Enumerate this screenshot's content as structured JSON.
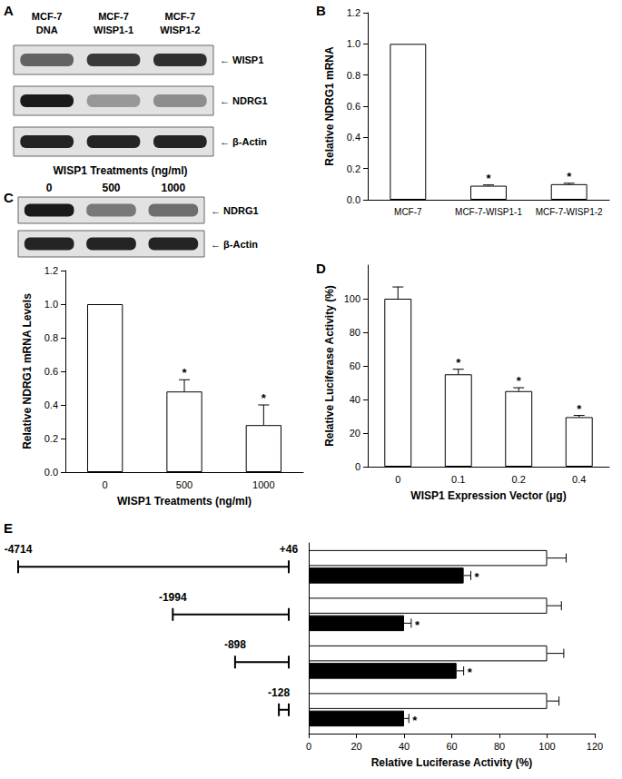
{
  "blots": [
    {
      "panel": "A",
      "lanes": [
        [
          "MCF-7",
          "DNA"
        ],
        [
          "MCF-7",
          "WISP1-1"
        ],
        [
          "MCF-7",
          "WISP1-2"
        ]
      ],
      "rows": [
        {
          "label": "← WISP1",
          "intensity": [
            0.6,
            0.8,
            0.85
          ]
        },
        {
          "label": "← NDRG1",
          "intensity": [
            0.95,
            0.35,
            0.4
          ]
        },
        {
          "label": "← β-Actin",
          "intensity": [
            0.9,
            0.9,
            0.9
          ]
        }
      ]
    },
    {
      "title": "WISP1 Treatments (ng/ml)",
      "lanes": [
        0,
        500,
        1000
      ],
      "rows": [
        {
          "label": "← NDRG1",
          "intensity": [
            0.95,
            0.5,
            0.55
          ]
        },
        {
          "label": "← β-Actin",
          "intensity": [
            0.9,
            0.9,
            0.9
          ]
        }
      ]
    }
  ],
  "chart_data": [
    {
      "panel": "B",
      "type": "bar",
      "categories": [
        "MCF-7",
        "MCF-7-WISP1-1",
        "MCF-7-WISP1-2"
      ],
      "values": [
        1.0,
        0.09,
        0.1
      ],
      "errors": [
        0,
        0.005,
        0.006
      ],
      "annotations": [
        null,
        "*",
        "*"
      ],
      "y_label": "Relative NDRG1 mRNA",
      "ylim": [
        0,
        1.2
      ],
      "yticks": [
        {
          "value": 0,
          "label": "0.0"
        },
        0.2,
        0.4,
        0.6,
        0.8,
        {
          "value": 1,
          "label": "1.0"
        },
        1.2
      ],
      "color": "#ffffff",
      "grid": false
    },
    {
      "panel": "C",
      "type": "bar",
      "categories": [
        "0",
        "500",
        "1000"
      ],
      "values": [
        1.0,
        0.48,
        0.28
      ],
      "errors": [
        0,
        0.07,
        0.12
      ],
      "annotations": [
        null,
        "*",
        "*"
      ],
      "x_label": "WISP1 Treatments (ng/ml)",
      "y_label": "Relative NDRG1 mRNA Levels",
      "ylim": [
        0,
        1.2
      ],
      "yticks": [
        {
          "value": 0,
          "label": "0.0"
        },
        0.2,
        0.4,
        0.6,
        0.8,
        {
          "value": 1,
          "label": "1.0"
        },
        1.2
      ],
      "color": "#ffffff",
      "grid": false
    },
    {
      "panel": "D",
      "type": "bar",
      "categories": [
        "0",
        "0.1",
        "0.2",
        "0.4"
      ],
      "values": [
        100,
        55,
        45,
        29.5
      ],
      "errors": [
        7,
        3,
        2,
        1
      ],
      "annotations": [
        null,
        "*",
        "*",
        "*"
      ],
      "x_label": "WISP1 Expression Vector (μg)",
      "y_label": "Relative Luciferase Activity (%)",
      "ylim": [
        0,
        120
      ],
      "yticks": [
        0,
        20,
        40,
        60,
        80,
        100
      ],
      "color": "#ffffff",
      "grid": false
    },
    {
      "panel": "E",
      "type": "bar",
      "orientation": "horizontal",
      "categories": [
        null,
        null,
        null,
        null
      ],
      "series": [
        {
          "color": "#ffffff",
          "values": [
            100,
            100,
            100,
            100
          ],
          "errors": [
            8,
            6,
            7,
            5
          ]
        },
        {
          "color": "#000000",
          "values": [
            65,
            40,
            62,
            40
          ],
          "errors": [
            3,
            3,
            3,
            2
          ],
          "annotations": [
            "*",
            "*",
            "*",
            "*"
          ]
        }
      ],
      "x_label": "Relative Luciferase Activity (%)",
      "xlim": [
        0,
        120
      ],
      "xticks": [
        0,
        20,
        40,
        60,
        80,
        100,
        120
      ],
      "grid": false,
      "constructs": [
        {
          "start": -4714,
          "end": 46,
          "end_label": "+46"
        },
        {
          "start": -1994,
          "end": 46
        },
        {
          "start": -898,
          "end": 46
        },
        {
          "start": -128,
          "end": 46
        }
      ]
    }
  ]
}
